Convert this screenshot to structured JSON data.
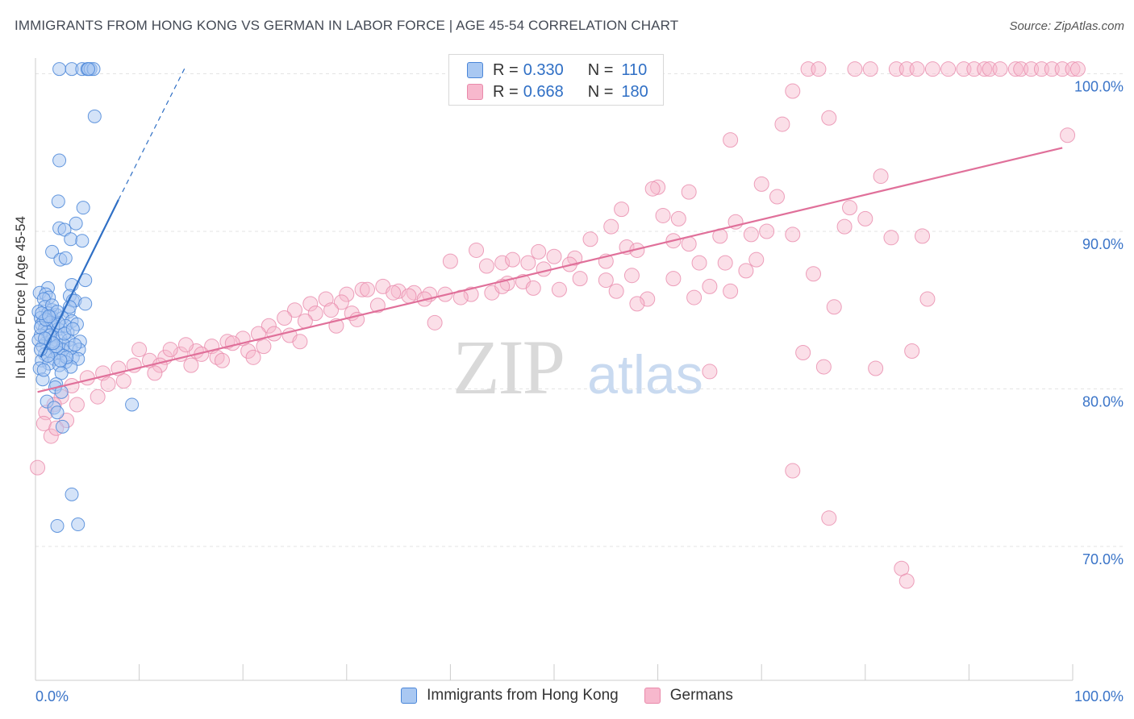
{
  "title": "IMMIGRANTS FROM HONG KONG VS GERMAN IN LABOR FORCE | AGE 45-54 CORRELATION CHART",
  "source": "Source: ZipAtlas.com",
  "watermark": {
    "zip": "ZIP",
    "atlas": "atlas"
  },
  "colors": {
    "blue_fill": "#a9c8f2",
    "blue_stroke": "#4a86d8",
    "blue_line": "#2f6fc5",
    "pink_fill": "#f7b8cd",
    "pink_stroke": "#e98aab",
    "pink_line": "#e0709a",
    "axis_label": "#3a74c8",
    "grid": "#e3e3e3"
  },
  "legend": {
    "rows": [
      {
        "r_label": "R =",
        "r_value": "0.330",
        "n_label": "N =",
        "n_value": "110"
      },
      {
        "r_label": "R =",
        "r_value": "0.668",
        "n_label": "N =",
        "n_value": "180"
      }
    ]
  },
  "bottom_legend": [
    "Immigrants from Hong Kong",
    "Germans"
  ],
  "chart_data": {
    "type": "scatter",
    "ylabel": "In Labor Force | Age 45-54",
    "x_tick_labels": [
      "0.0%",
      "100.0%"
    ],
    "y_tick_labels": [
      "100.0%",
      "90.0%",
      "80.0%",
      "70.0%"
    ],
    "xlim": [
      0,
      100
    ],
    "ylim": [
      61.5,
      101
    ],
    "y_grid": [
      70,
      80,
      90,
      100
    ],
    "grid": true,
    "series": [
      {
        "name": "Immigrants from Hong Kong",
        "trend": {
          "x0": 0.5,
          "y0": 82.0,
          "x1": 8.0,
          "y1": 92.0,
          "dash_to_x": 14.5,
          "dash_to_y": 100.5
        },
        "points": [
          [
            2.3,
            100.3
          ],
          [
            3.5,
            100.3
          ],
          [
            4.5,
            100.3
          ],
          [
            5.0,
            100.3
          ],
          [
            5.3,
            100.3
          ],
          [
            5.6,
            100.3
          ],
          [
            5.1,
            100.3
          ],
          [
            5.7,
            97.3
          ],
          [
            2.3,
            94.5
          ],
          [
            2.2,
            91.9
          ],
          [
            4.6,
            91.5
          ],
          [
            3.9,
            90.5
          ],
          [
            2.3,
            90.2
          ],
          [
            2.8,
            90.1
          ],
          [
            3.4,
            89.5
          ],
          [
            4.5,
            89.4
          ],
          [
            1.6,
            88.7
          ],
          [
            2.4,
            88.2
          ],
          [
            2.9,
            88.3
          ],
          [
            4.8,
            86.9
          ],
          [
            3.5,
            86.6
          ],
          [
            1.2,
            86.4
          ],
          [
            0.4,
            86.1
          ],
          [
            1.0,
            86.0
          ],
          [
            1.3,
            85.8
          ],
          [
            3.3,
            85.9
          ],
          [
            0.8,
            85.7
          ],
          [
            3.6,
            85.6
          ],
          [
            3.8,
            85.6
          ],
          [
            4.8,
            85.4
          ],
          [
            0.9,
            85.2
          ],
          [
            1.6,
            85.0
          ],
          [
            0.3,
            84.9
          ],
          [
            1.2,
            84.8
          ],
          [
            1.5,
            84.6
          ],
          [
            2.0,
            84.7
          ],
          [
            3.2,
            84.9
          ],
          [
            0.5,
            84.5
          ],
          [
            0.8,
            84.3
          ],
          [
            1.4,
            84.2
          ],
          [
            2.6,
            84.5
          ],
          [
            3.5,
            84.3
          ],
          [
            0.6,
            84.1
          ],
          [
            1.8,
            84.0
          ],
          [
            0.9,
            83.8
          ],
          [
            2.2,
            83.8
          ],
          [
            1.1,
            83.6
          ],
          [
            3.1,
            83.6
          ],
          [
            0.5,
            83.4
          ],
          [
            1.7,
            83.3
          ],
          [
            2.4,
            83.2
          ],
          [
            3.2,
            83.1
          ],
          [
            4.3,
            83.0
          ],
          [
            1.0,
            82.9
          ],
          [
            2.7,
            82.8
          ],
          [
            0.7,
            82.7
          ],
          [
            1.9,
            82.6
          ],
          [
            2.6,
            82.5
          ],
          [
            3.4,
            82.6
          ],
          [
            1.4,
            82.4
          ],
          [
            2.2,
            82.3
          ],
          [
            4.2,
            82.5
          ],
          [
            0.9,
            82.2
          ],
          [
            2.7,
            82.1
          ],
          [
            3.6,
            82.0
          ],
          [
            1.8,
            81.9
          ],
          [
            4.1,
            81.9
          ],
          [
            0.6,
            81.8
          ],
          [
            2.9,
            81.7
          ],
          [
            1.3,
            81.6
          ],
          [
            2.3,
            81.5
          ],
          [
            3.4,
            81.4
          ],
          [
            0.4,
            81.3
          ],
          [
            2.5,
            81.0
          ],
          [
            0.7,
            80.6
          ],
          [
            2.0,
            80.3
          ],
          [
            1.9,
            80.1
          ],
          [
            2.5,
            79.8
          ],
          [
            9.3,
            79.0
          ],
          [
            1.1,
            79.2
          ],
          [
            1.8,
            78.8
          ],
          [
            2.1,
            78.5
          ],
          [
            2.6,
            77.6
          ],
          [
            3.5,
            73.3
          ],
          [
            2.1,
            71.3
          ],
          [
            4.1,
            71.4
          ],
          [
            0.5,
            83.9
          ],
          [
            1.5,
            83.0
          ],
          [
            2.9,
            84.0
          ],
          [
            3.8,
            82.8
          ],
          [
            1.2,
            82.1
          ],
          [
            0.3,
            83.1
          ],
          [
            2.0,
            82.7
          ],
          [
            4.0,
            84.1
          ],
          [
            1.6,
            85.3
          ],
          [
            2.8,
            83.5
          ],
          [
            0.8,
            81.2
          ],
          [
            1.0,
            84.4
          ],
          [
            3.0,
            82.0
          ],
          [
            2.2,
            84.2
          ],
          [
            1.4,
            83.4
          ],
          [
            0.6,
            84.8
          ],
          [
            3.3,
            85.2
          ],
          [
            2.4,
            81.8
          ],
          [
            1.7,
            82.9
          ],
          [
            0.9,
            83.2
          ],
          [
            2.1,
            84.9
          ],
          [
            3.6,
            83.8
          ],
          [
            1.3,
            84.6
          ],
          [
            0.5,
            82.5
          ]
        ]
      },
      {
        "name": "Germans",
        "trend": {
          "x0": 0.2,
          "y0": 79.8,
          "x1": 99.0,
          "y1": 95.3
        },
        "points": [
          [
            74.5,
            100.3
          ],
          [
            75.5,
            100.3
          ],
          [
            79.0,
            100.3
          ],
          [
            80.5,
            100.3
          ],
          [
            83.0,
            100.3
          ],
          [
            84.0,
            100.3
          ],
          [
            86.5,
            100.3
          ],
          [
            88.0,
            100.3
          ],
          [
            89.5,
            100.3
          ],
          [
            90.5,
            100.3
          ],
          [
            91.5,
            100.3
          ],
          [
            92.0,
            100.3
          ],
          [
            93.0,
            100.3
          ],
          [
            94.5,
            100.3
          ],
          [
            95.0,
            100.3
          ],
          [
            96.0,
            100.3
          ],
          [
            97.0,
            100.3
          ],
          [
            98.0,
            100.3
          ],
          [
            99.0,
            100.3
          ],
          [
            100.0,
            100.3
          ],
          [
            100.5,
            100.3
          ],
          [
            85.0,
            100.3
          ],
          [
            73.0,
            98.9
          ],
          [
            76.5,
            97.2
          ],
          [
            72.0,
            96.8
          ],
          [
            67.0,
            95.8
          ],
          [
            99.5,
            96.1
          ],
          [
            81.5,
            93.5
          ],
          [
            70.0,
            93.0
          ],
          [
            60.0,
            92.8
          ],
          [
            63.0,
            92.5
          ],
          [
            59.5,
            92.7
          ],
          [
            71.5,
            92.2
          ],
          [
            56.5,
            91.4
          ],
          [
            78.5,
            91.5
          ],
          [
            60.5,
            91.0
          ],
          [
            62.0,
            90.8
          ],
          [
            67.5,
            90.6
          ],
          [
            80.0,
            90.8
          ],
          [
            78.0,
            90.3
          ],
          [
            55.5,
            90.3
          ],
          [
            70.5,
            90.0
          ],
          [
            82.5,
            89.6
          ],
          [
            85.5,
            89.7
          ],
          [
            69.0,
            89.8
          ],
          [
            73.0,
            89.8
          ],
          [
            66.0,
            89.7
          ],
          [
            53.5,
            89.5
          ],
          [
            61.5,
            89.4
          ],
          [
            63.0,
            89.2
          ],
          [
            57.0,
            89.0
          ],
          [
            58.0,
            88.8
          ],
          [
            48.5,
            88.7
          ],
          [
            42.5,
            88.8
          ],
          [
            52.0,
            88.3
          ],
          [
            50.0,
            88.4
          ],
          [
            55.0,
            88.1
          ],
          [
            45.0,
            88.0
          ],
          [
            40.0,
            88.1
          ],
          [
            46.0,
            88.2
          ],
          [
            47.5,
            88.0
          ],
          [
            51.5,
            87.9
          ],
          [
            64.0,
            88.0
          ],
          [
            66.5,
            88.0
          ],
          [
            69.5,
            88.2
          ],
          [
            43.5,
            87.8
          ],
          [
            49.0,
            87.6
          ],
          [
            68.5,
            87.5
          ],
          [
            75.0,
            87.3
          ],
          [
            52.5,
            87.0
          ],
          [
            57.5,
            87.2
          ],
          [
            61.5,
            87.0
          ],
          [
            55.0,
            86.9
          ],
          [
            45.5,
            86.7
          ],
          [
            47.0,
            86.8
          ],
          [
            65.0,
            86.5
          ],
          [
            67.0,
            86.2
          ],
          [
            63.5,
            85.8
          ],
          [
            59.0,
            85.7
          ],
          [
            56.0,
            86.2
          ],
          [
            48.0,
            86.4
          ],
          [
            50.5,
            86.3
          ],
          [
            44.0,
            86.1
          ],
          [
            42.0,
            86.0
          ],
          [
            38.0,
            86.0
          ],
          [
            36.5,
            86.1
          ],
          [
            35.0,
            86.2
          ],
          [
            33.5,
            86.5
          ],
          [
            31.5,
            86.3
          ],
          [
            30.0,
            86.0
          ],
          [
            28.0,
            85.7
          ],
          [
            26.5,
            85.4
          ],
          [
            25.0,
            85.0
          ],
          [
            24.0,
            84.5
          ],
          [
            22.5,
            84.0
          ],
          [
            21.5,
            83.5
          ],
          [
            20.0,
            83.2
          ],
          [
            18.5,
            83.0
          ],
          [
            17.0,
            82.7
          ],
          [
            15.5,
            82.4
          ],
          [
            14.0,
            82.2
          ],
          [
            12.5,
            82.0
          ],
          [
            11.0,
            81.8
          ],
          [
            9.5,
            81.5
          ],
          [
            8.0,
            81.3
          ],
          [
            6.5,
            81.0
          ],
          [
            5.0,
            80.7
          ],
          [
            3.5,
            80.2
          ],
          [
            2.5,
            79.5
          ],
          [
            1.8,
            79.0
          ],
          [
            1.0,
            78.5
          ],
          [
            0.8,
            77.8
          ],
          [
            1.5,
            77.0
          ],
          [
            0.2,
            75.0
          ],
          [
            13.0,
            82.5
          ],
          [
            16.0,
            82.2
          ],
          [
            19.0,
            82.9
          ],
          [
            23.0,
            83.5
          ],
          [
            27.0,
            84.8
          ],
          [
            29.5,
            85.5
          ],
          [
            32.0,
            86.3
          ],
          [
            34.5,
            86.1
          ],
          [
            37.5,
            85.7
          ],
          [
            39.5,
            86.0
          ],
          [
            41.0,
            85.8
          ],
          [
            45.0,
            86.5
          ],
          [
            10.0,
            82.5
          ],
          [
            12.0,
            81.5
          ],
          [
            14.5,
            82.8
          ],
          [
            17.5,
            82.0
          ],
          [
            20.5,
            82.4
          ],
          [
            22.0,
            82.7
          ],
          [
            24.5,
            83.4
          ],
          [
            26.0,
            84.3
          ],
          [
            28.5,
            85.0
          ],
          [
            30.5,
            84.8
          ],
          [
            33.0,
            85.3
          ],
          [
            36.0,
            85.9
          ],
          [
            7.0,
            80.3
          ],
          [
            4.0,
            79.0
          ],
          [
            6.0,
            79.5
          ],
          [
            8.5,
            80.5
          ],
          [
            3.0,
            78.0
          ],
          [
            2.0,
            77.5
          ],
          [
            11.5,
            81.0
          ],
          [
            15.0,
            81.5
          ],
          [
            18.0,
            81.8
          ],
          [
            21.0,
            82.0
          ],
          [
            25.5,
            83.0
          ],
          [
            29.0,
            84.0
          ],
          [
            31.0,
            84.4
          ],
          [
            38.5,
            84.2
          ],
          [
            77.0,
            85.2
          ],
          [
            86.0,
            85.7
          ],
          [
            58.0,
            85.4
          ],
          [
            81.0,
            81.3
          ],
          [
            76.0,
            81.4
          ],
          [
            74.0,
            82.3
          ],
          [
            84.5,
            82.4
          ],
          [
            65.0,
            81.1
          ],
          [
            73.0,
            74.8
          ],
          [
            76.5,
            71.8
          ],
          [
            83.5,
            68.6
          ],
          [
            84.0,
            67.8
          ]
        ]
      }
    ]
  }
}
